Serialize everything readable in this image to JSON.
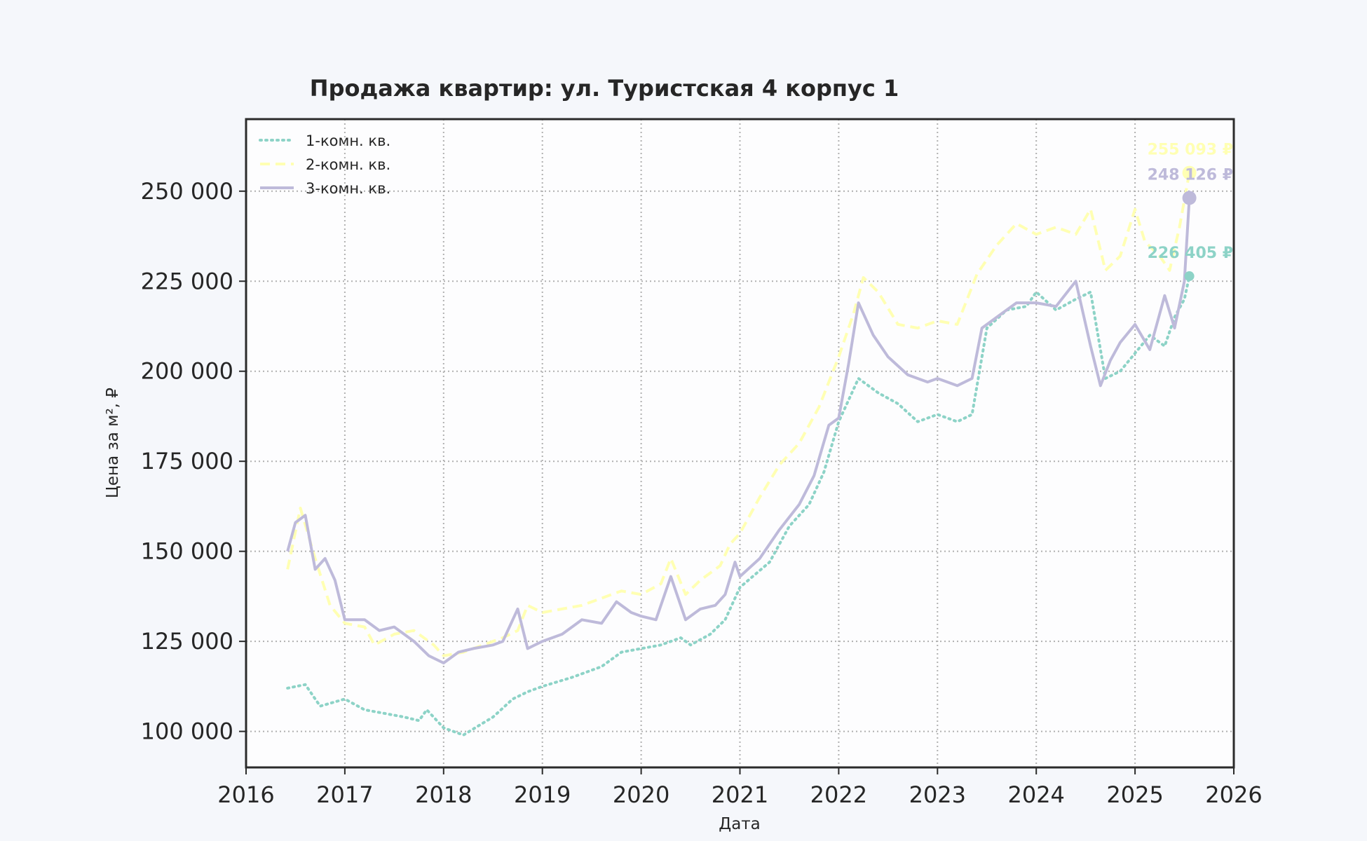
{
  "chart_data": {
    "type": "line",
    "title": "Продажа квартир: ул. Туристская 4 корпус 1",
    "xlabel": "Дата",
    "ylabel": "Цена за м², ₽",
    "xlim": [
      2016.0,
      2026.0
    ],
    "ylim": [
      90000,
      270000
    ],
    "x_ticks": [
      2016,
      2017,
      2018,
      2019,
      2020,
      2021,
      2022,
      2023,
      2024,
      2025,
      2026
    ],
    "y_ticks": [
      100000,
      125000,
      150000,
      175000,
      200000,
      225000,
      250000
    ],
    "x_tick_labels": [
      "2016",
      "2017",
      "2018",
      "2019",
      "2020",
      "2021",
      "2022",
      "2023",
      "2024",
      "2025",
      "2026"
    ],
    "y_tick_labels": [
      "100 000",
      "125 000",
      "150 000",
      "175 000",
      "200 000",
      "225 000",
      "250 000"
    ],
    "grid": true,
    "legend_position": "top-left",
    "series": [
      {
        "name": "1-комн. кв.",
        "color": "#8dd3c7",
        "style": "dotted",
        "last_label": "226 405 ₽",
        "last_value": 226405,
        "x": [
          2016.42,
          2016.6,
          2016.75,
          2017.0,
          2017.2,
          2017.4,
          2017.6,
          2017.75,
          2017.83,
          2018.0,
          2018.2,
          2018.35,
          2018.5,
          2018.7,
          2018.85,
          2019.0,
          2019.3,
          2019.6,
          2019.8,
          2020.0,
          2020.2,
          2020.4,
          2020.5,
          2020.7,
          2020.85,
          2021.0,
          2021.3,
          2021.5,
          2021.7,
          2021.85,
          2022.0,
          2022.2,
          2022.4,
          2022.6,
          2022.8,
          2023.0,
          2023.2,
          2023.35,
          2023.5,
          2023.7,
          2023.9,
          2024.0,
          2024.2,
          2024.4,
          2024.55,
          2024.7,
          2024.85,
          2025.0,
          2025.15,
          2025.3,
          2025.4,
          2025.5,
          2025.55
        ],
        "y": [
          112000,
          113000,
          107000,
          109000,
          106000,
          105000,
          104000,
          103000,
          106000,
          101000,
          99000,
          101500,
          104000,
          109000,
          111000,
          112500,
          115000,
          118000,
          122000,
          123000,
          124000,
          126000,
          124000,
          127000,
          131000,
          140000,
          147000,
          157000,
          163000,
          172000,
          186000,
          198000,
          194000,
          191000,
          186000,
          188000,
          186000,
          188000,
          212000,
          217000,
          218000,
          222000,
          217000,
          220000,
          222000,
          198000,
          200000,
          205000,
          210000,
          207000,
          215000,
          220000,
          226405
        ]
      },
      {
        "name": "2-комн. кв.",
        "color": "#ffffb3",
        "style": "dashed",
        "last_label": "255 093 ₽",
        "last_value": 255093,
        "x": [
          2016.42,
          2016.55,
          2016.7,
          2016.85,
          2017.0,
          2017.2,
          2017.3,
          2017.5,
          2017.7,
          2017.9,
          2018.0,
          2018.2,
          2018.4,
          2018.6,
          2018.75,
          2018.85,
          2019.0,
          2019.2,
          2019.4,
          2019.6,
          2019.8,
          2020.0,
          2020.2,
          2020.3,
          2020.45,
          2020.6,
          2020.8,
          2020.9,
          2021.0,
          2021.2,
          2021.4,
          2021.6,
          2021.8,
          2022.0,
          2022.15,
          2022.25,
          2022.4,
          2022.6,
          2022.8,
          2023.0,
          2023.2,
          2023.4,
          2023.6,
          2023.8,
          2024.0,
          2024.2,
          2024.4,
          2024.55,
          2024.7,
          2024.85,
          2025.0,
          2025.1,
          2025.25,
          2025.35,
          2025.45,
          2025.55
        ],
        "y": [
          145000,
          162000,
          148000,
          135000,
          130000,
          129000,
          124000,
          127000,
          128000,
          124000,
          121000,
          122000,
          124000,
          126000,
          128000,
          135000,
          133000,
          134000,
          135000,
          137000,
          139000,
          138000,
          141000,
          148000,
          138000,
          142000,
          146000,
          152000,
          155000,
          165000,
          174000,
          180000,
          190000,
          204000,
          216000,
          226000,
          222000,
          213000,
          212000,
          214000,
          213000,
          227000,
          235000,
          241000,
          238000,
          240000,
          238000,
          245000,
          228000,
          232000,
          245000,
          236000,
          232000,
          228000,
          240000,
          255093
        ]
      },
      {
        "name": "3-комн. кв.",
        "color": "#bebada",
        "style": "solid",
        "last_label": "248 126 ₽",
        "last_value": 248126,
        "x": [
          2016.42,
          2016.5,
          2016.6,
          2016.7,
          2016.8,
          2016.9,
          2017.0,
          2017.2,
          2017.35,
          2017.5,
          2017.7,
          2017.85,
          2018.0,
          2018.15,
          2018.3,
          2018.5,
          2018.6,
          2018.75,
          2018.85,
          2019.0,
          2019.2,
          2019.4,
          2019.6,
          2019.75,
          2019.9,
          2020.0,
          2020.15,
          2020.3,
          2020.45,
          2020.6,
          2020.75,
          2020.85,
          2020.95,
          2021.0,
          2021.2,
          2021.4,
          2021.6,
          2021.75,
          2021.9,
          2022.0,
          2022.1,
          2022.2,
          2022.35,
          2022.5,
          2022.7,
          2022.9,
          2023.0,
          2023.2,
          2023.35,
          2023.45,
          2023.6,
          2023.8,
          2024.0,
          2024.2,
          2024.4,
          2024.55,
          2024.65,
          2024.75,
          2024.85,
          2025.0,
          2025.15,
          2025.3,
          2025.4,
          2025.5,
          2025.55
        ],
        "y": [
          150000,
          158000,
          160000,
          145000,
          148000,
          142000,
          131000,
          131000,
          128000,
          129000,
          125000,
          121000,
          119000,
          122000,
          123000,
          124000,
          125000,
          134000,
          123000,
          125000,
          127000,
          131000,
          130000,
          136000,
          133000,
          132000,
          131000,
          143000,
          131000,
          134000,
          135000,
          138000,
          147000,
          143000,
          148000,
          156000,
          163000,
          171000,
          185000,
          187000,
          202000,
          219000,
          210000,
          204000,
          199000,
          197000,
          198000,
          196000,
          198000,
          212000,
          215000,
          219000,
          219000,
          218000,
          225000,
          207000,
          196000,
          203000,
          208000,
          213000,
          206000,
          221000,
          212000,
          225000,
          248126
        ]
      }
    ]
  }
}
